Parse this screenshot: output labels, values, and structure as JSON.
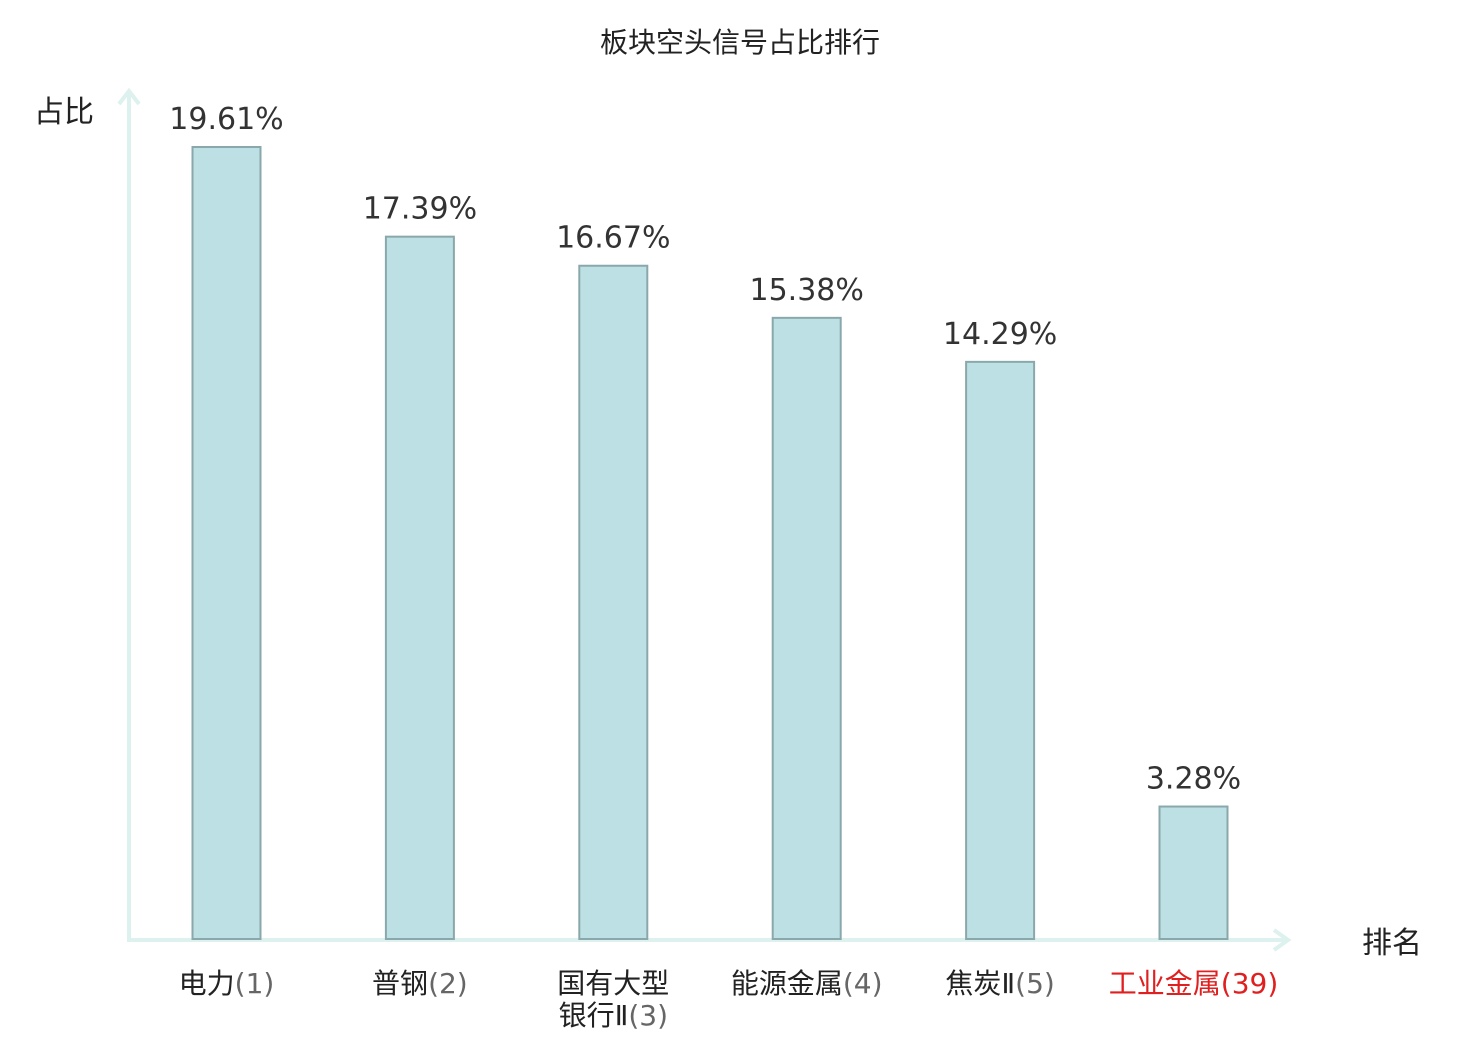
{
  "chart_data": {
    "type": "bar",
    "title": "板块空头信号占比排行",
    "xlabel": "排名",
    "ylabel": "占比",
    "ylim": [
      0,
      21
    ],
    "grid": false,
    "legend": "none",
    "categories": [
      {
        "lines": [
          "电力"
        ],
        "rank": "(1)",
        "highlight": false
      },
      {
        "lines": [
          "普钢"
        ],
        "rank": "(2)",
        "highlight": false
      },
      {
        "lines": [
          "国有大型",
          "银行Ⅱ"
        ],
        "rank": "(3)",
        "highlight": false
      },
      {
        "lines": [
          "能源金属"
        ],
        "rank": "(4)",
        "highlight": false
      },
      {
        "lines": [
          "焦炭Ⅱ"
        ],
        "rank": "(5)",
        "highlight": false
      },
      {
        "lines": [
          "工业金属"
        ],
        "rank": "(39)",
        "highlight": true
      }
    ],
    "values": [
      19.61,
      17.39,
      16.67,
      15.38,
      14.29,
      3.28
    ],
    "value_labels": [
      "19.61%",
      "17.39%",
      "16.67%",
      "15.38%",
      "14.29%",
      "3.28%"
    ]
  },
  "colors": {
    "bar_fill": "#bce0e3",
    "bar_stroke": "#8aa8ab",
    "axis": "#ddf1ee",
    "highlight": "#e02020"
  }
}
